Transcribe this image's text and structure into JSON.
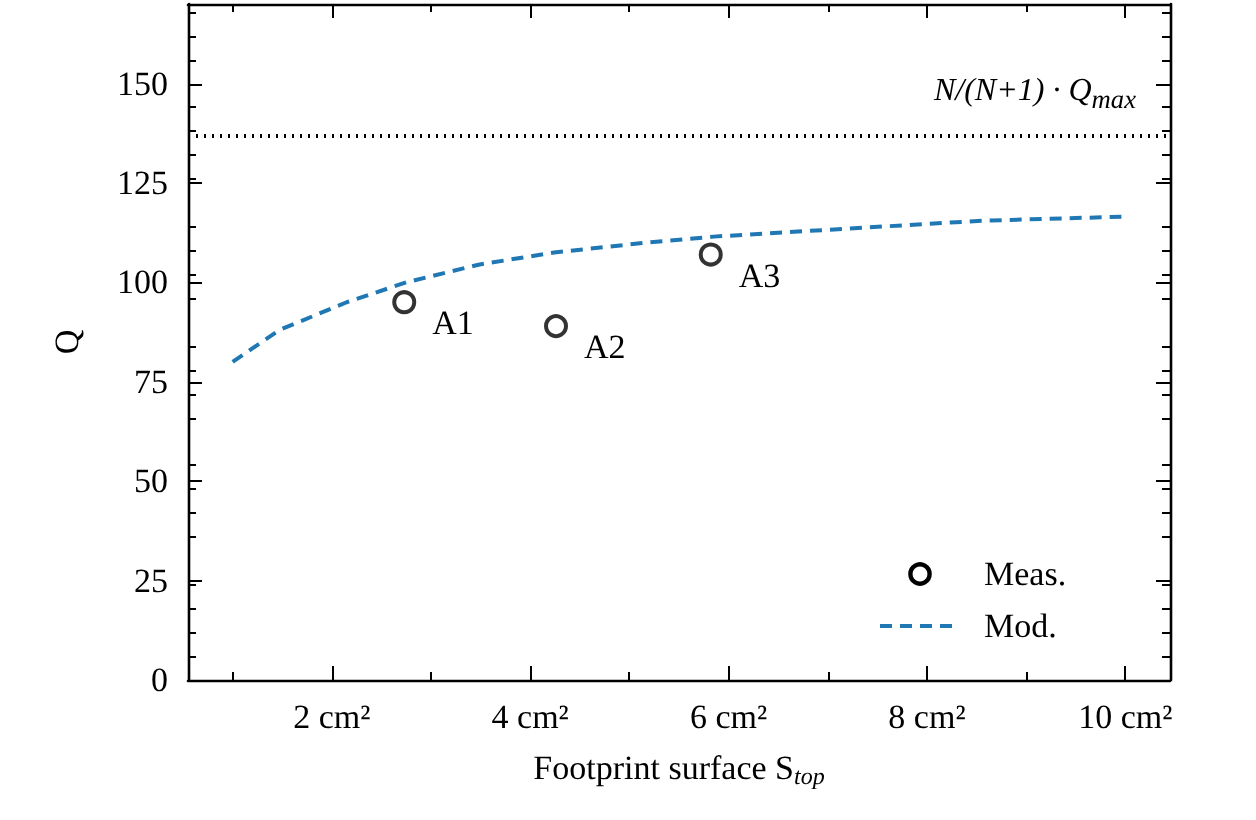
{
  "chart_data": {
    "type": "scatter",
    "xlabel": "Footprint surface S$_{top}$",
    "ylabel": "Q",
    "xlim": [
      0.55,
      10.45
    ],
    "ylim": [
      0,
      170
    ],
    "xticks": [
      {
        "value": 2,
        "label": "2 cm²"
      },
      {
        "value": 4,
        "label": "4 cm²"
      },
      {
        "value": 6,
        "label": "6 cm²"
      },
      {
        "value": 8,
        "label": "8 cm²"
      },
      {
        "value": 10,
        "label": "10 cm²"
      }
    ],
    "yticks": [
      0,
      25,
      50,
      75,
      100,
      125,
      150
    ],
    "series": [
      {
        "name": "Meas.",
        "type": "scatter",
        "color": "#000000",
        "marker": "circle",
        "x": [
          2.73,
          4.26,
          5.82
        ],
        "values": [
          95,
          89,
          107
        ]
      },
      {
        "name": "Mod.",
        "type": "line",
        "color": "#1f77b4",
        "line_style": "dashed",
        "marker": "none",
        "x": [
          1.0,
          1.47,
          2.15,
          2.75,
          3.49,
          4.24,
          5.17,
          5.85,
          7.19,
          8.55,
          9.96
        ],
        "values": [
          80,
          88,
          95,
          100,
          104.5,
          107.5,
          110,
          111.5,
          113.5,
          115.5,
          116.5
        ]
      }
    ],
    "ref_lines": [
      {
        "axis": "y",
        "value": 137,
        "label": "N/(N+1) · Q$_{max}$",
        "color": "#000000",
        "line_style": "dotted"
      }
    ],
    "annotations": [
      {
        "text": "A1",
        "x": 2.73,
        "y": 95
      },
      {
        "text": "A2",
        "x": 4.26,
        "y": 89
      },
      {
        "text": "A3",
        "x": 5.82,
        "y": 107
      }
    ],
    "legend": "bottom right",
    "grid": false
  }
}
